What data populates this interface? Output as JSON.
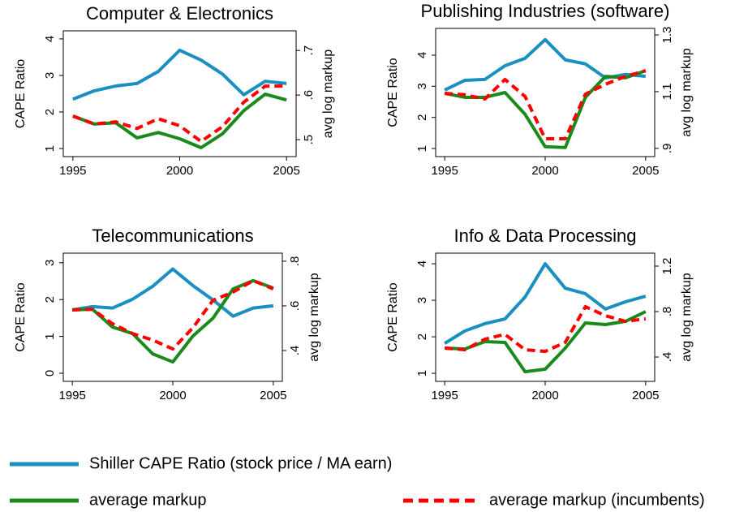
{
  "chart_data": [
    {
      "type": "line",
      "title": "Computer & Electronics",
      "ylabel": "CAPE Ratio",
      "y2label": "avg log markup",
      "x": [
        1995,
        1996,
        1997,
        1998,
        1999,
        2000,
        2001,
        2002,
        2003,
        2004,
        2005
      ],
      "xlim": [
        1994.55,
        2005.45
      ],
      "xticks": [
        1995,
        2000,
        2005
      ],
      "ylim": [
        0.78,
        4.22
      ],
      "yticks": [
        1,
        2,
        3,
        4
      ],
      "y2lim": [
        0.462,
        0.744
      ],
      "y2ticks": [
        {
          "value": 0.5,
          "label": ".5"
        },
        {
          "value": 0.6,
          "label": ".6"
        },
        {
          "value": 0.7,
          "label": ".7"
        }
      ],
      "series": [
        {
          "name": "Shiller CAPE Ratio (stock price / MA earn)",
          "color": "#1a8fc1",
          "values": [
            2.35,
            2.58,
            2.71,
            2.78,
            3.11,
            3.69,
            3.42,
            3.04,
            2.47,
            2.84,
            2.78
          ]
        },
        {
          "name": "average markup",
          "color": "#1a8a1a",
          "axis": "y2",
          "values": [
            0.553,
            0.535,
            0.538,
            0.504,
            0.516,
            0.502,
            0.482,
            0.513,
            0.565,
            0.602,
            0.589
          ]
        },
        {
          "name": "average markup (incumbents)",
          "color": "#ff0000",
          "axis": "y2",
          "dashed": true,
          "values": [
            0.553,
            0.535,
            0.54,
            0.525,
            0.547,
            0.531,
            0.496,
            0.529,
            0.584,
            0.62,
            0.62
          ]
        }
      ]
    },
    {
      "type": "line",
      "title": "Publishing Industries (software)",
      "ylabel": "CAPE Ratio",
      "y2label": "avg log markup",
      "x": [
        1995,
        1996,
        1997,
        1998,
        1999,
        2000,
        2001,
        2002,
        2003,
        2004,
        2005
      ],
      "xlim": [
        1994.55,
        2005.45
      ],
      "xticks": [
        1995,
        2000,
        2005
      ],
      "ylim": [
        0.74,
        4.86
      ],
      "yticks": [
        1,
        2,
        3,
        4
      ],
      "y2lim": [
        0.871,
        1.323
      ],
      "y2ticks": [
        {
          "value": 0.9,
          "label": ".9"
        },
        1.1,
        1.3
      ],
      "series": [
        {
          "color": "#1a8fc1",
          "values": [
            2.88,
            3.19,
            3.22,
            3.66,
            3.9,
            4.5,
            3.85,
            3.72,
            3.27,
            3.38,
            3.32
          ]
        },
        {
          "color": "#1a8a1a",
          "axis": "y2",
          "values": [
            1.094,
            1.08,
            1.08,
            1.097,
            1.02,
            0.906,
            0.903,
            1.08,
            1.154,
            1.149,
            1.174
          ]
        },
        {
          "color": "#ff0000",
          "axis": "y2",
          "dashed": true,
          "values": [
            1.094,
            1.089,
            1.074,
            1.143,
            1.083,
            0.934,
            0.934,
            1.091,
            1.126,
            1.154,
            1.174
          ]
        }
      ]
    },
    {
      "type": "line",
      "title": "Telecommunications",
      "ylabel": "CAPE Ratio",
      "y2label": "avg log markup",
      "x": [
        1995,
        1996,
        1997,
        1998,
        1999,
        2000,
        2001,
        2002,
        2003,
        2004,
        2005
      ],
      "xlim": [
        1994.55,
        2005.45
      ],
      "xticks": [
        1995,
        2000,
        2005
      ],
      "ylim": [
        -0.22,
        3.26
      ],
      "yticks": [
        0,
        1,
        2,
        3
      ],
      "y2lim": [
        0.262,
        0.836
      ],
      "y2ticks": [
        {
          "value": 0.4,
          "label": ".4"
        },
        {
          "value": 0.6,
          "label": ".6"
        },
        {
          "value": 0.8,
          "label": ".8"
        }
      ],
      "series": [
        {
          "color": "#1a8fc1",
          "values": [
            1.72,
            1.81,
            1.77,
            2.01,
            2.36,
            2.83,
            2.38,
            1.99,
            1.55,
            1.77,
            1.83
          ]
        },
        {
          "color": "#1a8a1a",
          "axis": "y2",
          "values": [
            0.582,
            0.585,
            0.505,
            0.476,
            0.385,
            0.349,
            0.465,
            0.545,
            0.676,
            0.713,
            0.68
          ]
        },
        {
          "color": "#ff0000",
          "axis": "y2",
          "dashed": true,
          "values": [
            0.582,
            0.585,
            0.52,
            0.476,
            0.447,
            0.407,
            0.502,
            0.625,
            0.662,
            0.713,
            0.676
          ]
        }
      ]
    },
    {
      "type": "line",
      "title": "Info & Data Processing",
      "ylabel": "CAPE Ratio",
      "y2label": "avg log markup",
      "x": [
        1995,
        1996,
        1997,
        1998,
        1999,
        2000,
        2001,
        2002,
        2003,
        2004,
        2005
      ],
      "xlim": [
        1994.55,
        2005.45
      ],
      "xticks": [
        1995,
        2000,
        2005
      ],
      "ylim": [
        0.78,
        4.29
      ],
      "yticks": [
        1,
        2,
        3,
        4
      ],
      "y2lim": [
        0.186,
        1.314
      ],
      "y2ticks": [
        {
          "value": 0.4,
          "label": ".4"
        },
        {
          "value": 0.8,
          "label": ".8"
        },
        1.2
      ],
      "series": [
        {
          "color": "#1a8fc1",
          "values": [
            1.82,
            2.16,
            2.36,
            2.49,
            3.09,
            4.0,
            3.33,
            3.18,
            2.76,
            2.96,
            3.11
          ]
        },
        {
          "color": "#1a8a1a",
          "axis": "y2",
          "values": [
            0.479,
            0.471,
            0.536,
            0.529,
            0.271,
            0.293,
            0.479,
            0.7,
            0.686,
            0.714,
            0.8
          ]
        },
        {
          "color": "#ff0000",
          "axis": "y2",
          "dashed": true,
          "values": [
            0.479,
            0.464,
            0.557,
            0.6,
            0.464,
            0.45,
            0.529,
            0.843,
            0.764,
            0.714,
            0.736
          ]
        }
      ]
    }
  ]
}
